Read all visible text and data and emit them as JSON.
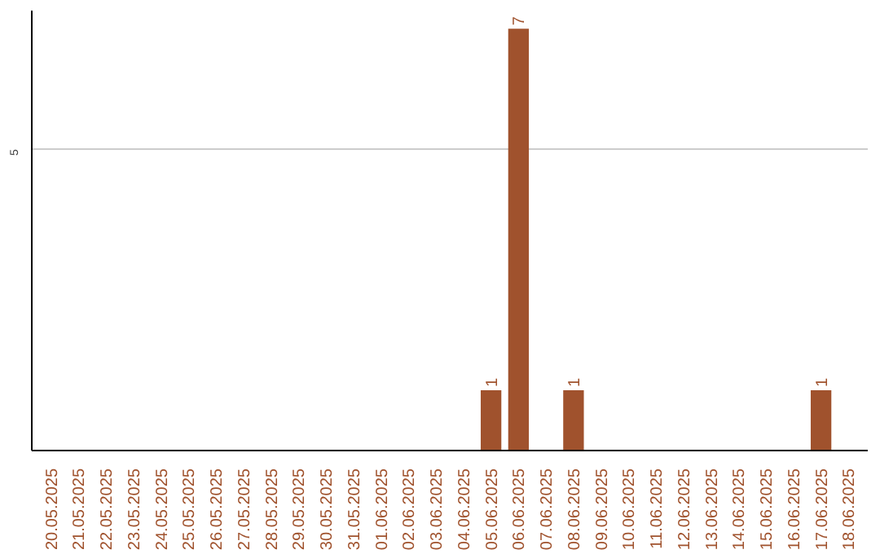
{
  "chart_data": {
    "type": "bar",
    "categories": [
      "20.05.2025",
      "21.05.2025",
      "22.05.2025",
      "23.05.2025",
      "24.05.2025",
      "25.05.2025",
      "26.05.2025",
      "27.05.2025",
      "28.05.2025",
      "29.05.2025",
      "30.05.2025",
      "31.05.2025",
      "01.06.2025",
      "02.06.2025",
      "03.06.2025",
      "04.06.2025",
      "05.06.2025",
      "06.06.2025",
      "07.06.2025",
      "08.06.2025",
      "09.06.2025",
      "10.06.2025",
      "11.06.2025",
      "12.06.2025",
      "13.06.2025",
      "14.06.2025",
      "15.06.2025",
      "16.06.2025",
      "17.06.2025",
      "18.06.2025"
    ],
    "values": [
      null,
      null,
      null,
      null,
      null,
      null,
      null,
      null,
      null,
      null,
      null,
      null,
      null,
      null,
      null,
      null,
      1,
      7,
      null,
      1,
      null,
      null,
      null,
      null,
      null,
      null,
      null,
      null,
      1,
      null
    ],
    "data_labels": true,
    "color": "#a0522d",
    "ylim": [
      0,
      7.3
    ],
    "yticks": [
      5
    ],
    "grid": "y"
  }
}
